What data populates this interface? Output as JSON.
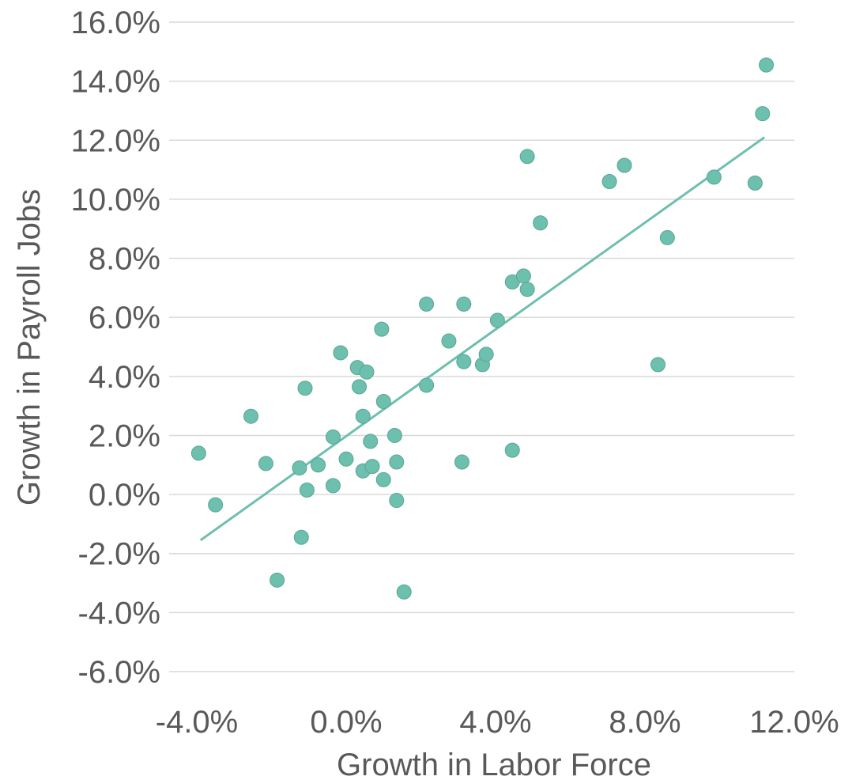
{
  "chart_data": {
    "type": "scatter",
    "title": "",
    "xlabel": "Growth in Labor Force",
    "ylabel": "Growth in Payroll Jobs",
    "xlim": [
      -4.0,
      12.0
    ],
    "ylim": [
      -6.0,
      16.0
    ],
    "x_ticks": [
      -4.0,
      0.0,
      4.0,
      8.0,
      12.0
    ],
    "x_tick_labels": [
      "-4.0%",
      "0.0%",
      "4.0%",
      "8.0%",
      "12.0%"
    ],
    "y_ticks": [
      -6.0,
      -4.0,
      -2.0,
      0.0,
      2.0,
      4.0,
      6.0,
      8.0,
      10.0,
      12.0,
      14.0,
      16.0
    ],
    "y_tick_labels": [
      "-6.0%",
      "-4.0%",
      "-2.0%",
      "0.0%",
      "2.0%",
      "4.0%",
      "6.0%",
      "8.0%",
      "10.0%",
      "12.0%",
      "14.0%",
      "16.0%"
    ],
    "grid": "horizontal",
    "legend": "none",
    "point_color": "#6dbfae",
    "trendline": {
      "x": [
        -3.9,
        11.2
      ],
      "y": [
        -1.55,
        12.1
      ]
    },
    "points": [
      {
        "x": -3.95,
        "y": 1.4
      },
      {
        "x": -3.5,
        "y": -0.35
      },
      {
        "x": -2.55,
        "y": 2.65
      },
      {
        "x": -2.15,
        "y": 1.05
      },
      {
        "x": -1.85,
        "y": -2.9
      },
      {
        "x": -1.25,
        "y": 0.9
      },
      {
        "x": -1.2,
        "y": -1.45
      },
      {
        "x": -1.1,
        "y": 3.6
      },
      {
        "x": -1.05,
        "y": 0.15
      },
      {
        "x": -0.75,
        "y": 1.0
      },
      {
        "x": -0.35,
        "y": 1.95
      },
      {
        "x": -0.35,
        "y": 0.3
      },
      {
        "x": -0.15,
        "y": 4.8
      },
      {
        "x": 0.0,
        "y": 1.2
      },
      {
        "x": 0.3,
        "y": 4.3
      },
      {
        "x": 0.35,
        "y": 3.65
      },
      {
        "x": 0.45,
        "y": 2.65
      },
      {
        "x": 0.45,
        "y": 0.8
      },
      {
        "x": 0.55,
        "y": 4.15
      },
      {
        "x": 0.65,
        "y": 1.8
      },
      {
        "x": 0.7,
        "y": 0.95
      },
      {
        "x": 0.95,
        "y": 5.6
      },
      {
        "x": 1.0,
        "y": 3.15
      },
      {
        "x": 1.0,
        "y": 0.5
      },
      {
        "x": 1.3,
        "y": 2.0
      },
      {
        "x": 1.35,
        "y": 1.1
      },
      {
        "x": 1.35,
        "y": -0.2
      },
      {
        "x": 1.55,
        "y": -3.3
      },
      {
        "x": 2.15,
        "y": 6.45
      },
      {
        "x": 2.15,
        "y": 3.7
      },
      {
        "x": 2.75,
        "y": 5.2
      },
      {
        "x": 3.15,
        "y": 6.45
      },
      {
        "x": 3.15,
        "y": 4.5
      },
      {
        "x": 3.1,
        "y": 1.1
      },
      {
        "x": 3.65,
        "y": 4.4
      },
      {
        "x": 3.75,
        "y": 4.75
      },
      {
        "x": 4.05,
        "y": 5.9
      },
      {
        "x": 4.45,
        "y": 7.2
      },
      {
        "x": 4.45,
        "y": 1.5
      },
      {
        "x": 4.75,
        "y": 7.4
      },
      {
        "x": 4.85,
        "y": 6.95
      },
      {
        "x": 4.85,
        "y": 11.45
      },
      {
        "x": 5.2,
        "y": 9.2
      },
      {
        "x": 7.05,
        "y": 10.6
      },
      {
        "x": 7.45,
        "y": 11.15
      },
      {
        "x": 8.35,
        "y": 4.4
      },
      {
        "x": 8.6,
        "y": 8.7
      },
      {
        "x": 9.85,
        "y": 10.75
      },
      {
        "x": 10.95,
        "y": 10.55
      },
      {
        "x": 11.15,
        "y": 12.9
      },
      {
        "x": 11.25,
        "y": 14.55
      }
    ]
  }
}
